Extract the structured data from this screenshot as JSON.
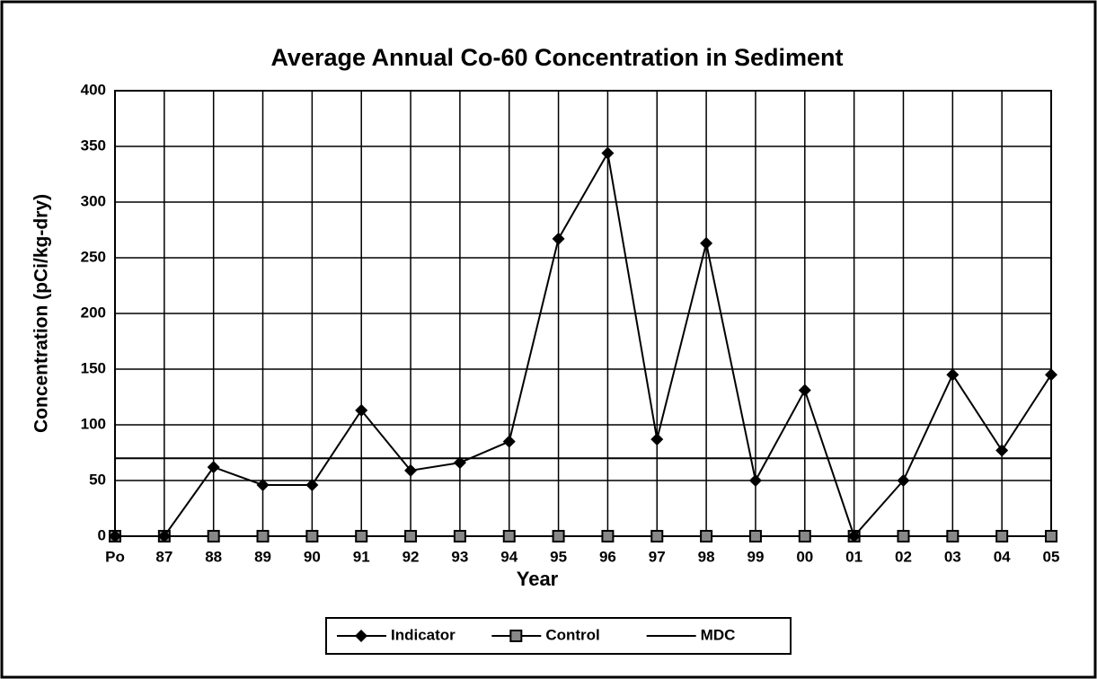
{
  "chart_data": {
    "type": "line",
    "title": "Average Annual Co-60 Concentration in Sediment",
    "x_label": "Year",
    "y_label": "Concentration (pCi/kg-dry)",
    "categories": [
      "Po",
      "87",
      "88",
      "89",
      "90",
      "91",
      "92",
      "93",
      "94",
      "95",
      "96",
      "97",
      "98",
      "99",
      "00",
      "01",
      "02",
      "03",
      "04",
      "05"
    ],
    "series": [
      {
        "name": "Indicator",
        "color": "#000000",
        "marker": "diamond",
        "values": [
          0,
          0,
          62,
          46,
          46,
          113,
          59,
          66,
          85,
          267,
          344,
          87,
          263,
          50,
          131,
          0,
          50,
          145,
          77,
          145
        ]
      },
      {
        "name": "Control",
        "color": "#000000",
        "marker": "square",
        "values": [
          0,
          0,
          0,
          0,
          0,
          0,
          0,
          0,
          0,
          0,
          0,
          0,
          0,
          0,
          0,
          0,
          0,
          0,
          0,
          0
        ]
      },
      {
        "name": "MDC",
        "color": "#000000",
        "marker": "none",
        "values": [
          70,
          70,
          70,
          70,
          70,
          70,
          70,
          70,
          70,
          70,
          70,
          70,
          70,
          70,
          70,
          70,
          70,
          70,
          70,
          70
        ]
      }
    ],
    "ylim": [
      0,
      400
    ],
    "yticks": [
      0,
      50,
      100,
      150,
      200,
      250,
      300,
      350,
      400
    ],
    "grid": true,
    "legend": "bottom"
  }
}
